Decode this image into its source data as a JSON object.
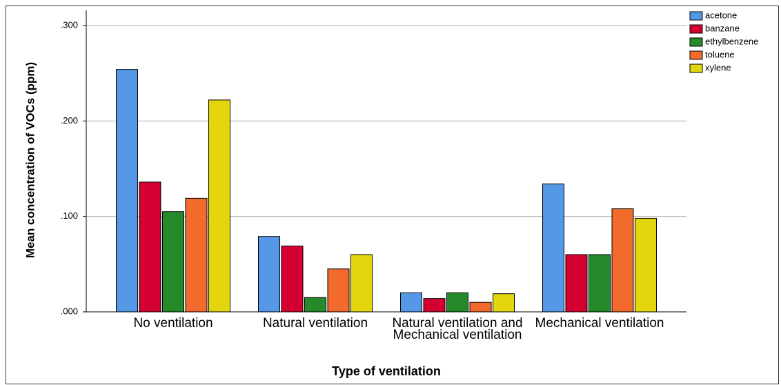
{
  "chart_data": {
    "type": "bar",
    "xlabel": "Type of ventilation",
    "ylabel": "Mean concentration of VOCs (ppm)",
    "categories": [
      "No ventilation",
      "Natural ventilation",
      "Natural ventilation and Mechanical ventilation",
      "Mechanical ventilation"
    ],
    "series": [
      {
        "name": "acetone",
        "color": "#5599e6",
        "values": [
          0.254,
          0.079,
          0.02,
          0.134
        ]
      },
      {
        "name": "banzane",
        "color": "#d40032",
        "values": [
          0.136,
          0.069,
          0.014,
          0.06
        ]
      },
      {
        "name": "ethylbenzene",
        "color": "#258a2a",
        "values": [
          0.105,
          0.015,
          0.02,
          0.06
        ]
      },
      {
        "name": "toluene",
        "color": "#f26a2c",
        "values": [
          0.119,
          0.045,
          0.01,
          0.108
        ]
      },
      {
        "name": "xylene",
        "color": "#e3d60d",
        "values": [
          0.222,
          0.06,
          0.019,
          0.098
        ]
      }
    ],
    "ylim": [
      0,
      0.3
    ],
    "yticks": [
      {
        "value": 0,
        "label": ".000"
      },
      {
        "value": 0.1,
        "label": ".100"
      },
      {
        "value": 0.2,
        "label": ".200"
      },
      {
        "value": 0.3,
        "label": ".300"
      }
    ],
    "grid": true,
    "legend": "top-right"
  }
}
